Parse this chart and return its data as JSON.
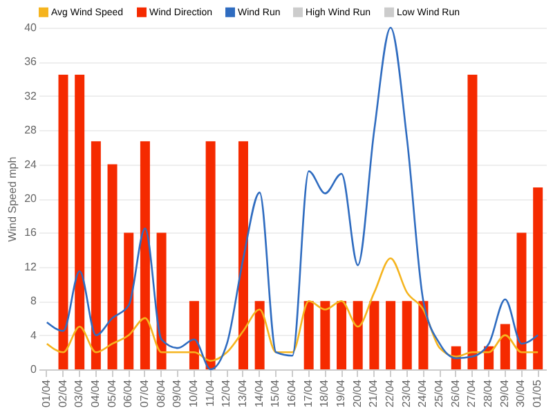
{
  "chart_data": {
    "type": "bar",
    "ylabel": "Wind Speed mph",
    "categories": [
      "01/04",
      "02/04",
      "03/04",
      "04/04",
      "05/04",
      "06/04",
      "07/04",
      "08/04",
      "09/04",
      "10/04",
      "11/04",
      "12/04",
      "13/04",
      "14/04",
      "15/04",
      "16/04",
      "17/04",
      "18/04",
      "19/04",
      "20/04",
      "21/04",
      "22/04",
      "23/04",
      "24/04",
      "25/04",
      "26/04",
      "27/04",
      "28/04",
      "29/04",
      "30/04",
      "01/05"
    ],
    "series": [
      {
        "name": "Avg Wind Speed",
        "type": "line",
        "color": "#f5b41e",
        "values": [
          3,
          2,
          5,
          2,
          3,
          4,
          6,
          2,
          2,
          2,
          1,
          2,
          4.5,
          7,
          2,
          2,
          8,
          7,
          8,
          5,
          9,
          13,
          9,
          7,
          2.5,
          1.5,
          2,
          2,
          4,
          2,
          2
        ]
      },
      {
        "name": "Wind Direction",
        "color": "#f52a00",
        "values": [
          null,
          34.5,
          34.5,
          26.7,
          24,
          16,
          26.7,
          16,
          null,
          8,
          26.7,
          null,
          26.7,
          8,
          null,
          null,
          8,
          8,
          8,
          8,
          8,
          8,
          8,
          8,
          null,
          2.7,
          34.5,
          2.7,
          5.3,
          16,
          21.3
        ]
      },
      {
        "name": "Wind Run",
        "type": "line",
        "color": "#2f6cc0",
        "values": [
          5.5,
          4.5,
          11.5,
          4,
          6,
          7.5,
          16.5,
          3.5,
          2.5,
          3.5,
          0,
          3,
          13,
          20.7,
          2,
          1.6,
          23.2,
          20.6,
          22.9,
          12.2,
          28,
          40,
          27,
          8,
          3,
          1.3,
          1.5,
          3,
          8.2,
          3,
          4
        ]
      },
      {
        "name": "High Wind Run",
        "type": "line",
        "color": "#cccccc",
        "values": [
          null,
          null,
          null,
          null,
          null,
          null,
          null,
          null,
          null,
          null,
          null,
          null,
          null,
          null,
          null,
          null,
          null,
          null,
          null,
          null,
          null,
          null,
          null,
          null,
          null,
          null,
          null,
          null,
          null,
          null,
          null
        ]
      },
      {
        "name": "Low Wind Run",
        "type": "line",
        "color": "#cccccc",
        "values": [
          null,
          null,
          null,
          null,
          null,
          null,
          null,
          null,
          null,
          null,
          null,
          null,
          null,
          null,
          null,
          null,
          null,
          null,
          null,
          null,
          null,
          null,
          null,
          null,
          null,
          null,
          null,
          null,
          null,
          null,
          null
        ]
      }
    ],
    "ylim": [
      0,
      40
    ],
    "yticks": [
      0,
      4,
      8,
      12,
      16,
      20,
      24,
      28,
      32,
      36,
      40
    ],
    "grid": "y",
    "legend": "top left"
  }
}
